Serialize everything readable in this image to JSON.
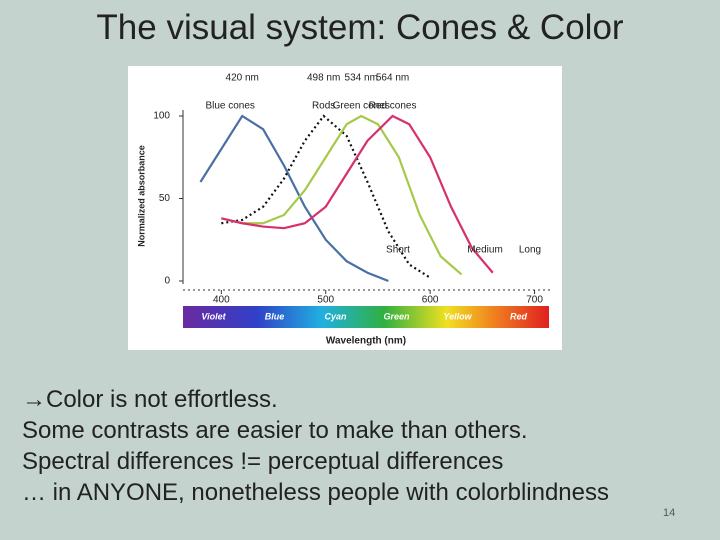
{
  "slide": {
    "title": "The visual system: Cones & Color",
    "body": [
      "→Color is not effortless.",
      "Some contrasts are easier to make than others.",
      "Spectral differences != perceptual differences",
      "… in ANYONE, nonetheless people with colorblindness"
    ],
    "page_number": "14"
  },
  "chart_data": {
    "type": "line",
    "ylabel": "Normalized absorbance",
    "xlabel": "Wavelength (nm)",
    "xlim": [
      370,
      710
    ],
    "xticks": [
      400,
      500,
      600,
      700
    ],
    "ylim": [
      0,
      100
    ],
    "yticks": [
      0,
      50,
      100
    ],
    "series": [
      {
        "name": "Blue cones",
        "color": "#4a6fa5",
        "dash": false,
        "peak": 420,
        "peak_label": "420 nm",
        "x": [
          380,
          400,
          420,
          440,
          460,
          480,
          500,
          520,
          540,
          560
        ],
        "values": [
          60,
          80,
          100,
          92,
          70,
          45,
          25,
          12,
          5,
          0
        ]
      },
      {
        "name": "Rods",
        "color": "#111111",
        "dash": true,
        "peak": 498,
        "peak_label": "498 nm",
        "x": [
          400,
          420,
          440,
          460,
          480,
          498,
          520,
          540,
          560,
          580,
          600
        ],
        "values": [
          35,
          37,
          45,
          62,
          85,
          100,
          88,
          60,
          30,
          10,
          2
        ]
      },
      {
        "name": "Green cones",
        "color": "#a6c94a",
        "dash": false,
        "peak": 534,
        "peak_label": "534 nm",
        "x": [
          400,
          420,
          440,
          460,
          480,
          500,
          520,
          534,
          550,
          570,
          590,
          610,
          630
        ],
        "values": [
          38,
          35,
          35,
          40,
          55,
          75,
          95,
          100,
          95,
          75,
          40,
          15,
          4
        ]
      },
      {
        "name": "Red cones",
        "color": "#d6306f",
        "dash": false,
        "peak": 564,
        "peak_label": "564 nm",
        "x": [
          400,
          420,
          440,
          460,
          480,
          500,
          520,
          540,
          564,
          580,
          600,
          620,
          640,
          660
        ],
        "values": [
          38,
          35,
          33,
          32,
          35,
          45,
          65,
          85,
          100,
          95,
          75,
          45,
          20,
          5
        ]
      }
    ],
    "band_labels": [
      "Short",
      "Medium",
      "Long"
    ],
    "spectrum_labels": [
      "Violet",
      "Blue",
      "Cyan",
      "Green",
      "Yellow",
      "Red"
    ]
  }
}
